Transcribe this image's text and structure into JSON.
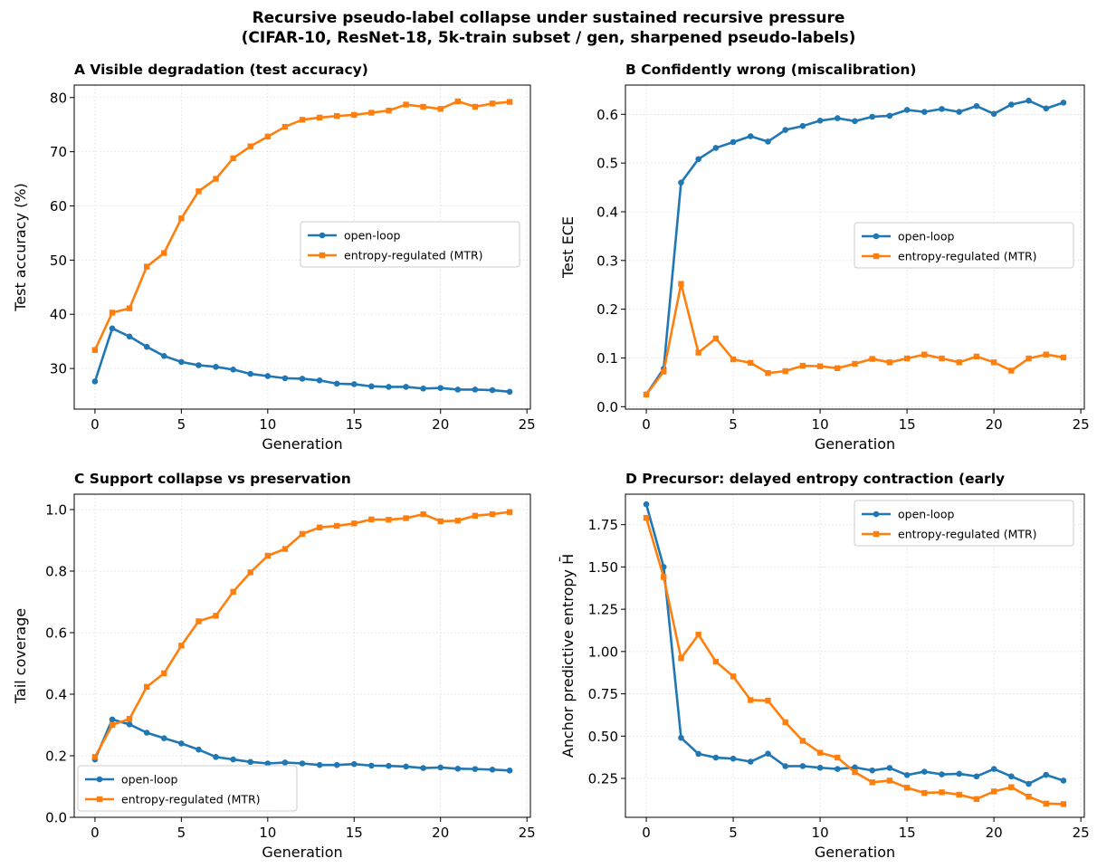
{
  "figure": {
    "title_line1": "Recursive pseudo-label collapse under sustained recursive pressure",
    "title_line2": "(CIFAR-10, ResNet-18, 5k-train subset / gen, sharpened pseudo-labels)"
  },
  "colors": {
    "open_loop": "#1f77b4",
    "mtr": "#ff7f0e",
    "grid": "#d9d9d9"
  },
  "chart_data": [
    {
      "type": "line",
      "title": "A  Visible degradation (test accuracy)",
      "xlabel": "Generation",
      "ylabel": "Test accuracy (%)",
      "xlim": [
        -1.2,
        25.2
      ],
      "ylim": [
        22.5,
        82.3
      ],
      "xticks": [
        0,
        5,
        10,
        15,
        20,
        25
      ],
      "yticks": [
        30,
        40,
        50,
        60,
        70,
        80
      ],
      "yticklabels": [
        "30",
        "40",
        "50",
        "60",
        "70",
        "80"
      ],
      "grid": true,
      "legend_position": "center-right",
      "x": [
        0,
        1,
        2,
        3,
        4,
        5,
        6,
        7,
        8,
        9,
        10,
        11,
        12,
        13,
        14,
        15,
        16,
        17,
        18,
        19,
        20,
        21,
        22,
        23,
        24
      ],
      "series": [
        {
          "name": "open-loop",
          "marker": "circle",
          "values": [
            27.6,
            37.4,
            35.9,
            34.0,
            32.3,
            31.2,
            30.6,
            30.3,
            29.8,
            29.0,
            28.6,
            28.2,
            28.1,
            27.8,
            27.2,
            27.1,
            26.7,
            26.6,
            26.6,
            26.3,
            26.4,
            26.1,
            26.1,
            26.0,
            25.7
          ]
        },
        {
          "name": "entropy-regulated (MTR)",
          "marker": "square",
          "values": [
            33.4,
            40.3,
            41.1,
            48.8,
            51.3,
            57.7,
            62.7,
            65.0,
            68.8,
            71.0,
            72.8,
            74.6,
            75.9,
            76.3,
            76.6,
            76.8,
            77.2,
            77.6,
            78.7,
            78.3,
            77.9,
            79.3,
            78.3,
            78.9,
            79.2
          ]
        }
      ]
    },
    {
      "type": "line",
      "title": "B  Confidently wrong (miscalibration)",
      "xlabel": "Generation",
      "ylabel": "Test ECE",
      "xlim": [
        -1.2,
        25.2
      ],
      "ylim": [
        -0.005,
        0.66
      ],
      "xticks": [
        0,
        5,
        10,
        15,
        20,
        25
      ],
      "yticks": [
        0,
        0.1,
        0.2,
        0.3,
        0.4,
        0.5,
        0.6
      ],
      "yticklabels": [
        "0.0",
        "0.1",
        "0.2",
        "0.3",
        "0.4",
        "0.5",
        "0.6"
      ],
      "grid": true,
      "legend_position": "center-right",
      "x": [
        0,
        1,
        2,
        3,
        4,
        5,
        6,
        7,
        8,
        9,
        10,
        11,
        12,
        13,
        14,
        15,
        16,
        17,
        18,
        19,
        20,
        21,
        22,
        23,
        24
      ],
      "series": [
        {
          "name": "open-loop",
          "marker": "circle",
          "values": [
            0.025,
            0.078,
            0.46,
            0.508,
            0.531,
            0.543,
            0.555,
            0.544,
            0.568,
            0.576,
            0.587,
            0.592,
            0.586,
            0.595,
            0.597,
            0.609,
            0.605,
            0.611,
            0.605,
            0.617,
            0.601,
            0.62,
            0.628,
            0.612,
            0.624
          ]
        },
        {
          "name": "entropy-regulated (MTR)",
          "marker": "square",
          "values": [
            0.025,
            0.072,
            0.252,
            0.111,
            0.14,
            0.097,
            0.09,
            0.069,
            0.073,
            0.084,
            0.083,
            0.079,
            0.088,
            0.098,
            0.091,
            0.099,
            0.107,
            0.099,
            0.091,
            0.103,
            0.091,
            0.074,
            0.099,
            0.107,
            0.101
          ]
        }
      ]
    },
    {
      "type": "line",
      "title": "C  Support collapse vs preservation",
      "xlabel": "Generation",
      "ylabel": "Tail coverage",
      "xlim": [
        -1.2,
        25.2
      ],
      "ylim": [
        0.0,
        1.05
      ],
      "xticks": [
        0,
        5,
        10,
        15,
        20,
        25
      ],
      "yticks": [
        0,
        0.2,
        0.4,
        0.6,
        0.8,
        1.0
      ],
      "yticklabels": [
        "0.0",
        "0.2",
        "0.4",
        "0.6",
        "0.8",
        "1.0"
      ],
      "grid": true,
      "legend_position": "lower-left",
      "x": [
        0,
        1,
        2,
        3,
        4,
        5,
        6,
        7,
        8,
        9,
        10,
        11,
        12,
        13,
        14,
        15,
        16,
        17,
        18,
        19,
        20,
        21,
        22,
        23,
        24
      ],
      "series": [
        {
          "name": "open-loop",
          "marker": "circle",
          "values": [
            0.188,
            0.318,
            0.302,
            0.275,
            0.257,
            0.24,
            0.22,
            0.196,
            0.188,
            0.18,
            0.175,
            0.178,
            0.175,
            0.17,
            0.17,
            0.173,
            0.168,
            0.167,
            0.165,
            0.16,
            0.162,
            0.158,
            0.157,
            0.155,
            0.152
          ]
        },
        {
          "name": "entropy-regulated (MTR)",
          "marker": "square",
          "values": [
            0.196,
            0.3,
            0.32,
            0.424,
            0.468,
            0.558,
            0.637,
            0.655,
            0.733,
            0.796,
            0.85,
            0.872,
            0.921,
            0.942,
            0.947,
            0.955,
            0.968,
            0.967,
            0.972,
            0.985,
            0.962,
            0.964,
            0.98,
            0.985,
            0.992
          ]
        }
      ]
    },
    {
      "type": "line",
      "title": "D  Precursor: delayed entropy contraction (early",
      "xlabel": "Generation",
      "ylabel": "Anchor predictive entropy H̄",
      "xlim": [
        -1.2,
        25.2
      ],
      "ylim": [
        0.02,
        1.93
      ],
      "xticks": [
        0,
        5,
        10,
        15,
        20,
        25
      ],
      "yticks": [
        0.25,
        0.5,
        0.75,
        1.0,
        1.25,
        1.5,
        1.75
      ],
      "yticklabels": [
        "0.25",
        "0.50",
        "0.75",
        "1.00",
        "1.25",
        "1.50",
        "1.75"
      ],
      "grid": true,
      "legend_position": "upper-right",
      "x": [
        0,
        1,
        2,
        3,
        4,
        5,
        6,
        7,
        8,
        9,
        10,
        11,
        12,
        13,
        14,
        15,
        16,
        17,
        18,
        19,
        20,
        21,
        22,
        23,
        24
      ],
      "series": [
        {
          "name": "open-loop",
          "marker": "circle",
          "values": [
            1.87,
            1.5,
            0.49,
            0.395,
            0.373,
            0.367,
            0.349,
            0.396,
            0.322,
            0.323,
            0.313,
            0.306,
            0.315,
            0.297,
            0.312,
            0.27,
            0.29,
            0.274,
            0.277,
            0.262,
            0.306,
            0.262,
            0.218,
            0.271,
            0.237
          ]
        },
        {
          "name": "entropy-regulated (MTR)",
          "marker": "square",
          "values": [
            1.79,
            1.44,
            0.96,
            1.1,
            0.94,
            0.853,
            0.713,
            0.71,
            0.582,
            0.472,
            0.402,
            0.373,
            0.287,
            0.227,
            0.237,
            0.195,
            0.164,
            0.168,
            0.154,
            0.128,
            0.173,
            0.198,
            0.142,
            0.101,
            0.098
          ]
        }
      ]
    }
  ]
}
